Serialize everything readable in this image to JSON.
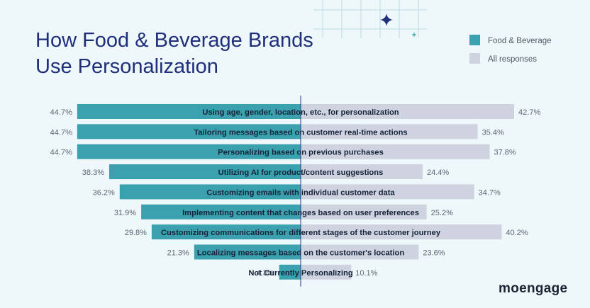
{
  "title_lines": [
    "How Food & Beverage Brands",
    "Use Personalization"
  ],
  "legend": [
    {
      "label": "Food & Beverage",
      "color": "#3ba1ae"
    },
    {
      "label": "All responses",
      "color": "#cfd3df"
    }
  ],
  "logo": "moengage",
  "chart_data": {
    "type": "bar",
    "orientation": "horizontal-diverging",
    "title": "How Food & Beverage Brands Use Personalization",
    "categories": [
      "Using age, gender, location, etc., for personalization",
      "Tailoring messages based on customer real-time actions",
      "Personalizing based on previous purchases",
      "Utilizing AI for product/content suggestions",
      "Customizing emails with individual customer data",
      "Implementing content that changes based on user preferences",
      "Customizing communications for different stages of the customer journey",
      "Localizing messages based on the customer's location",
      "Not Currently Personalizing"
    ],
    "series": [
      {
        "name": "Food & Beverage",
        "side": "left",
        "color": "#3ba1ae",
        "values": [
          44.7,
          44.7,
          44.7,
          38.3,
          36.2,
          31.9,
          29.8,
          21.3,
          4.3
        ],
        "labels": [
          "44.7%",
          "44.7%",
          "44.7%",
          "38.3%",
          "36.2%",
          "31.9%",
          "29.8%",
          "21.3%",
          "4.3%"
        ]
      },
      {
        "name": "All responses",
        "side": "right",
        "color": "#cfd3df",
        "values": [
          42.7,
          35.4,
          37.8,
          24.4,
          34.7,
          25.2,
          40.2,
          23.6,
          10.1
        ],
        "labels": [
          "42.7%",
          "35.4%",
          "37.8%",
          "24.4%",
          "34.7%",
          "25.2%",
          "40.2%",
          "23.6%",
          "10.1%"
        ]
      }
    ],
    "unit": "%",
    "grid": false,
    "legend_position": "top-right"
  }
}
